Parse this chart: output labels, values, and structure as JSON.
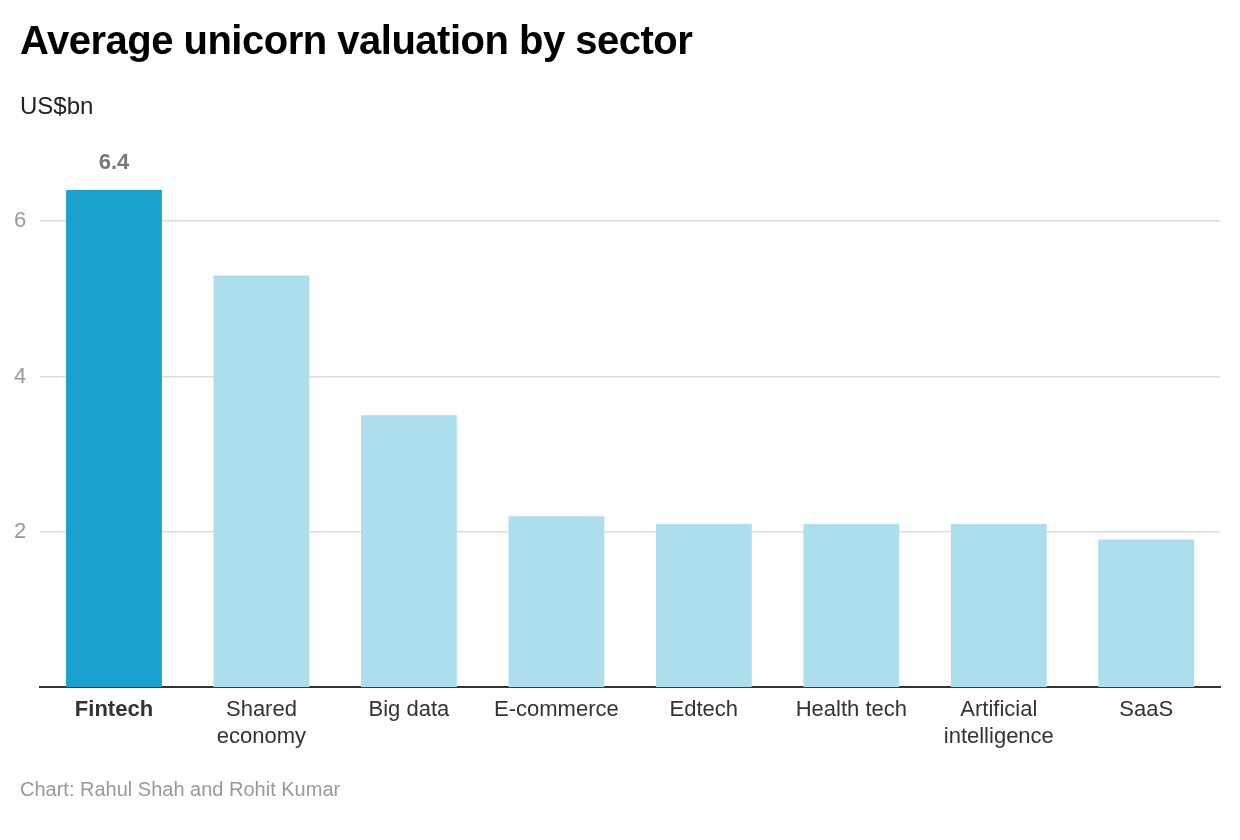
{
  "chart_data": {
    "type": "bar",
    "title": "Average unicorn valuation by sector",
    "ylabel": "US$bn",
    "categories": [
      "Fintech",
      "Shared economy",
      "Big data",
      "E-commerce",
      "Edtech",
      "Health tech",
      "Artificial intelligence",
      "SaaS"
    ],
    "values": [
      6.4,
      5.3,
      3.5,
      2.2,
      2.1,
      2.1,
      2.1,
      1.9
    ],
    "colors": [
      "#1aa1cd",
      "#addeec",
      "#addeec",
      "#addeec",
      "#addeec",
      "#addeec",
      "#addeec",
      "#addeec"
    ],
    "value_labels": [
      "6.4",
      null,
      null,
      null,
      null,
      null,
      null,
      null
    ],
    "ylim": [
      0,
      6.4
    ],
    "yticks": [
      2,
      4,
      6
    ],
    "grid": "y",
    "legend": false,
    "annotations": [
      "Chart: Rahul Shah and Rohit Kumar"
    ]
  }
}
